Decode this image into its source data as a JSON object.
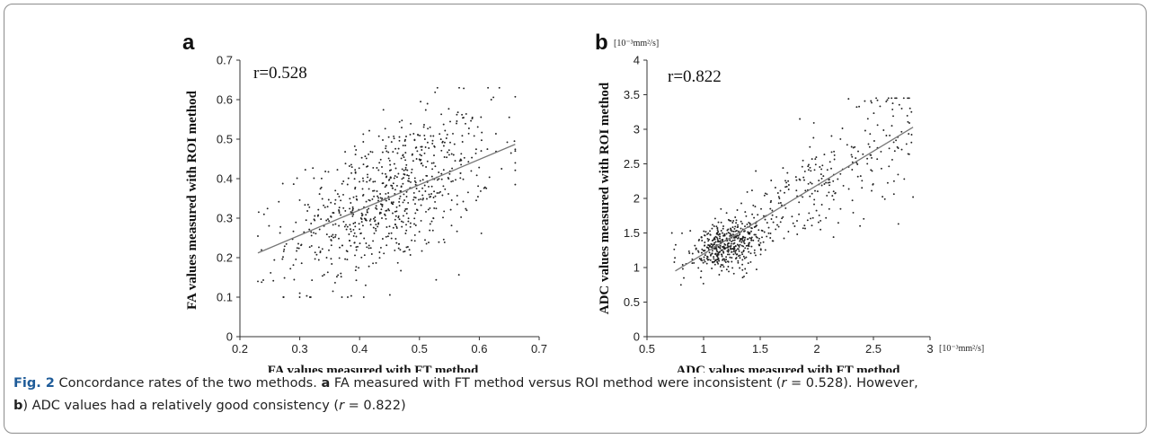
{
  "figure": {
    "caption": {
      "fig_label": "Fig. 2",
      "text_1": " Concordance rates of the two methods. ",
      "panel_a_ref": "a",
      "text_2": " FA measured with FT method versus ROI method were inconsistent (",
      "r_symbol_1": "r",
      "r_value_1": " = 0.528",
      "text_3": "). However,",
      "panel_b_ref": "b",
      "text_4": ") ADC values had a relatively good consistency (",
      "r_symbol_2": "r",
      "r_value_2": " = 0.822",
      "text_5": ")"
    }
  },
  "chart_data": [
    {
      "panel": "a",
      "type": "scatter",
      "annotation": "r=0.528",
      "xlabel": "FA values measured with FT method",
      "ylabel": "FA values measured with ROI method",
      "xlim": [
        0.2,
        0.7
      ],
      "ylim": [
        0,
        0.7
      ],
      "xticks": [
        "0.2",
        "0.3",
        "0.4",
        "0.5",
        "0.6",
        "0.7"
      ],
      "yticks": [
        "0",
        "0.1",
        "0.2",
        "0.3",
        "0.4",
        "0.5",
        "0.6",
        "0.7"
      ],
      "trendline": {
        "x": [
          0.23,
          0.66
        ],
        "y": [
          0.212,
          0.487
        ]
      },
      "point_color": "#222222",
      "point_count": 760,
      "point_distribution": {
        "x_mean": 0.45,
        "x_sd": 0.085,
        "x_range": [
          0.23,
          0.66
        ],
        "y_sd": 0.09,
        "y_range": [
          0.1,
          0.63
        ]
      },
      "sample_points": [
        [
          0.3,
          0.11
        ],
        [
          0.53,
          0.63
        ],
        [
          0.66,
          0.44
        ],
        [
          0.23,
          0.14
        ],
        [
          0.62,
          0.6
        ],
        [
          0.41,
          0.13
        ]
      ]
    },
    {
      "panel": "b",
      "type": "scatter",
      "annotation": "r=0.822",
      "xlabel": "ADC values measured with FT method",
      "ylabel": "ADC values measured with ROI method",
      "x_unit": "[10⁻³mm²/s]",
      "y_unit": "[10⁻³mm²/s]",
      "xlim": [
        0.5,
        3
      ],
      "ylim": [
        0,
        4
      ],
      "xticks": [
        "0.5",
        "1",
        "1.5",
        "2",
        "2.5",
        "3"
      ],
      "yticks": [
        "0",
        "0.5",
        "1",
        "1.5",
        "2",
        "2.5",
        "3",
        "3.5",
        "4"
      ],
      "trendline": {
        "x": [
          0.75,
          2.85
        ],
        "y": [
          0.95,
          3.03
        ]
      },
      "point_color": "#222222",
      "point_count": 720,
      "point_distribution": {
        "cluster_center": [
          1.2,
          1.32
        ],
        "x_range": [
          0.72,
          2.85
        ],
        "y_range": [
          0.75,
          3.45
        ]
      },
      "sample_points": [
        [
          2.28,
          3.44
        ],
        [
          2.85,
          2.02
        ],
        [
          0.72,
          1.5
        ],
        [
          0.8,
          0.75
        ],
        [
          1.85,
          3.15
        ],
        [
          2.75,
          3.3
        ]
      ]
    }
  ]
}
